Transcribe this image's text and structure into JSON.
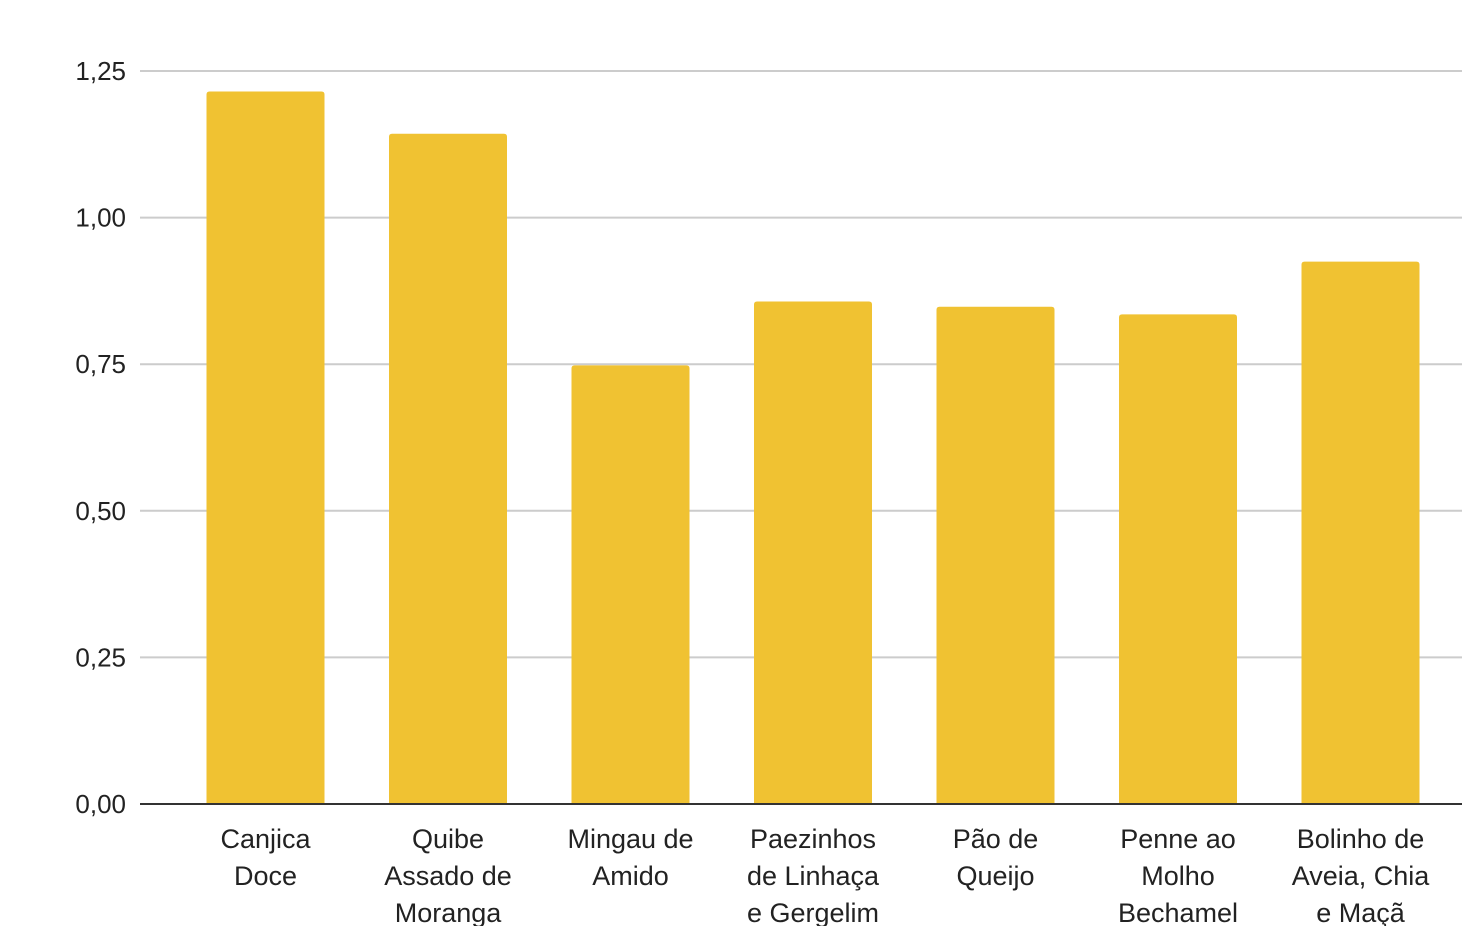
{
  "chart_data": {
    "type": "bar",
    "title": "",
    "xlabel": "",
    "ylabel": "",
    "ylim": [
      0,
      1.25
    ],
    "yticks": [
      0,
      0.25,
      0.5,
      0.75,
      1.0,
      1.25
    ],
    "ytick_labels": [
      "0,00",
      "0,25",
      "0,50",
      "0,75",
      "1,00",
      "1,25"
    ],
    "grid": true,
    "legend": "none",
    "categories": [
      [
        "Canjica",
        "Doce"
      ],
      [
        "Quibe",
        "Assado de",
        "Moranga"
      ],
      [
        "Mingau de",
        "Amido"
      ],
      [
        "Paezinhos",
        "de Linhaça",
        "e Gergelim"
      ],
      [
        "Pão de",
        "Queijo"
      ],
      [
        "Penne ao",
        "Molho",
        "Bechamel"
      ],
      [
        "Bolinho de",
        "Aveia, Chia",
        "e Maçã"
      ]
    ],
    "values": [
      1.215,
      1.143,
      0.748,
      0.857,
      0.848,
      0.835,
      0.925
    ],
    "colors": {
      "bar": "#F0C232",
      "grid": "#CCCCCC",
      "axis": "#333333",
      "text": "#222222"
    }
  }
}
